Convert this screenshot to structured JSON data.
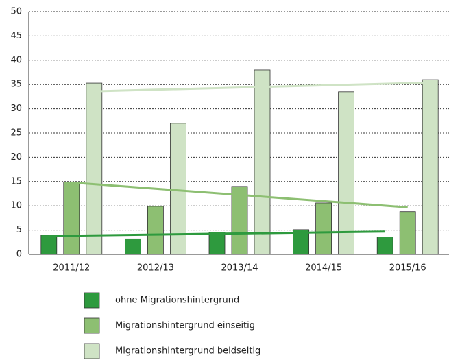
{
  "chart_data": {
    "type": "bar",
    "categories": [
      "2011/12",
      "2012/13",
      "2013/14",
      "2014/15",
      "2015/16"
    ],
    "series": [
      {
        "name": "ohne Migrationshintergrund",
        "color": "#2e9a3e",
        "values": [
          4.0,
          3.2,
          4.6,
          5.1,
          3.6
        ],
        "trend": [
          3.8,
          4.7
        ]
      },
      {
        "name": "Migrationshintergrund einseitig",
        "color": "#8dbf72",
        "values": [
          14.9,
          9.9,
          14.0,
          10.6,
          8.8
        ],
        "trend": [
          14.8,
          9.7
        ]
      },
      {
        "name": "Migrationshintergrund beidseitig",
        "color": "#cfe3c5",
        "values": [
          35.3,
          27.0,
          38.0,
          33.5,
          36.0
        ],
        "trend": [
          33.6,
          35.4
        ]
      }
    ],
    "ylim": [
      0,
      50
    ],
    "yticks": [
      0,
      5,
      10,
      15,
      20,
      25,
      30,
      35,
      40,
      45,
      50
    ],
    "grid": true
  }
}
